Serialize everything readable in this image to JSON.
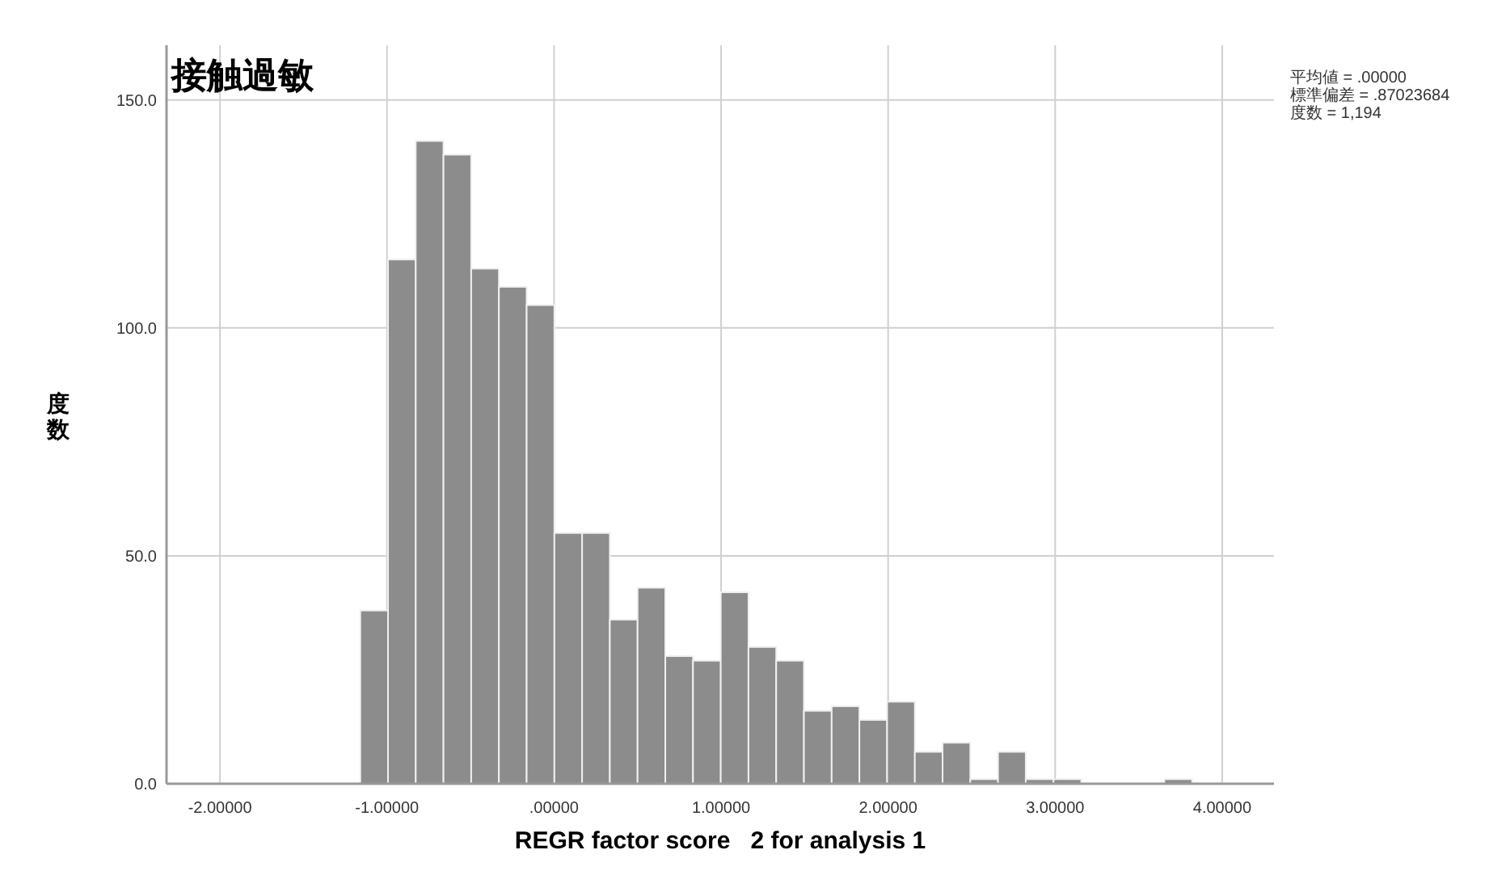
{
  "chart_data": {
    "type": "histogram",
    "title": "接触過敏",
    "xlabel": "REGR factor score   2 for analysis 1",
    "ylabel": "度数",
    "annotations": [
      "平均値 = .00000",
      "標準偏差 = .87023684",
      "度数 = 1,194"
    ],
    "bins": [
      -1.16,
      -0.994,
      -0.828,
      -0.662,
      -0.496,
      -0.33,
      -0.164,
      0.002,
      0.168,
      0.334,
      0.5,
      0.666,
      0.832,
      0.998,
      1.164,
      1.33,
      1.496,
      1.662,
      1.828,
      1.994,
      2.16,
      2.326,
      2.492,
      2.658,
      2.824,
      2.99,
      3.156,
      3.322,
      3.488,
      3.654,
      3.82
    ],
    "values": [
      38,
      115,
      141,
      138,
      113,
      109,
      105,
      55,
      55,
      36,
      43,
      28,
      27,
      42,
      30,
      27,
      16,
      17,
      14,
      18,
      7,
      9,
      1,
      7,
      1,
      1,
      0,
      0,
      0,
      1
    ],
    "color": "#8c8c8c",
    "xlim": [
      -2.32,
      4.31
    ],
    "ylim": [
      0,
      162
    ],
    "xticks": [
      {
        "value": -2,
        "label": "-2.00000"
      },
      {
        "value": -1,
        "label": "-1.00000"
      },
      {
        "value": 0,
        "label": ".00000"
      },
      {
        "value": 1,
        "label": "1.00000"
      },
      {
        "value": 2,
        "label": "2.00000"
      },
      {
        "value": 3,
        "label": "3.00000"
      },
      {
        "value": 4,
        "label": "4.00000"
      }
    ],
    "yticks": [
      {
        "value": 0,
        "label": "0.0"
      },
      {
        "value": 50,
        "label": "50.0"
      },
      {
        "value": 100,
        "label": "100.0"
      },
      {
        "value": 150,
        "label": "150.0"
      }
    ],
    "grid": true
  }
}
